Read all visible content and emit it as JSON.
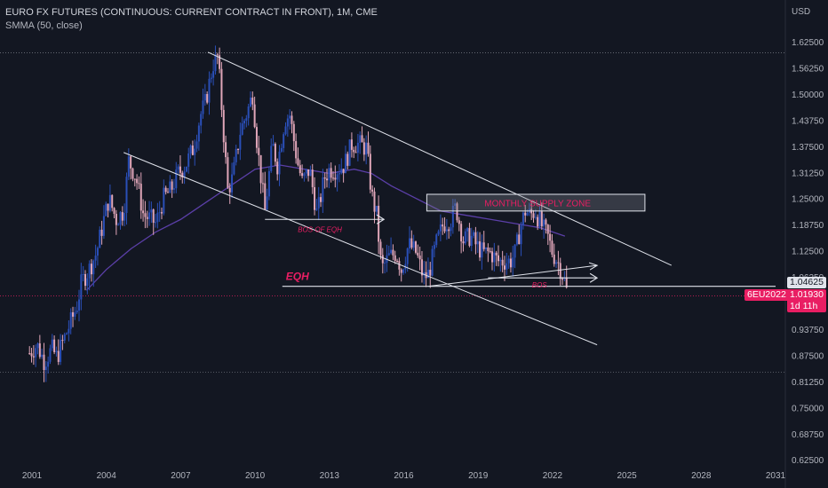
{
  "legend": {
    "title": "EURO FX FUTURES (CONTINUOUS: CURRENT CONTRACT IN FRONT), 1M, CME",
    "indicator": "SMMA (50, close)"
  },
  "axis": {
    "currency": "USD",
    "y_ticks": [
      "1.62500",
      "1.56250",
      "1.50000",
      "1.43750",
      "1.37500",
      "1.31250",
      "1.25000",
      "1.18750",
      "1.12500",
      "1.06250",
      "1.00000",
      "0.93750",
      "0.87500",
      "0.81250",
      "0.75000",
      "0.68750",
      "0.62500"
    ],
    "x_ticks": [
      "2001",
      "2004",
      "2007",
      "2010",
      "2013",
      "2016",
      "2019",
      "2022",
      "2025",
      "2028",
      "2031"
    ]
  },
  "price_labels": {
    "level_value": "1.04625",
    "symbol": "6EU2022",
    "last_price": "1.01930",
    "countdown": "1d 11h"
  },
  "annotations": {
    "supply_zone": "MONTHLY SUPPLY ZONE",
    "bos_eqh": "BOS OF EQH",
    "eqh": "EQH",
    "bos": "BOS"
  },
  "colors": {
    "background": "#131722",
    "bull": "#2a4fb8",
    "bear": "#e0a6b9",
    "smma": "#5b3fa8",
    "annotation": "#e91e63",
    "lines": "#e0e3eb",
    "label_pink": "#e91e63"
  },
  "chart_data": {
    "type": "candlestick",
    "title": "EURO FX FUTURES (CONTINUOUS: CURRENT CONTRACT IN FRONT), 1M, CME",
    "ylabel": "USD",
    "ylim": [
      0.625,
      1.65
    ],
    "xlim": [
      2000.5,
      2031
    ],
    "close_path": [
      [
        2000.9,
        0.88
      ],
      [
        2001.2,
        0.9
      ],
      [
        2001.5,
        0.86
      ],
      [
        2001.8,
        0.89
      ],
      [
        2002.0,
        0.87
      ],
      [
        2002.4,
        0.93
      ],
      [
        2002.8,
        0.99
      ],
      [
        2003.0,
        1.05
      ],
      [
        2003.3,
        1.08
      ],
      [
        2003.6,
        1.12
      ],
      [
        2003.9,
        1.2
      ],
      [
        2004.1,
        1.25
      ],
      [
        2004.4,
        1.2
      ],
      [
        2004.7,
        1.22
      ],
      [
        2004.9,
        1.34
      ],
      [
        2005.2,
        1.3
      ],
      [
        2005.5,
        1.21
      ],
      [
        2005.8,
        1.2
      ],
      [
        2006.0,
        1.19
      ],
      [
        2006.3,
        1.25
      ],
      [
        2006.6,
        1.27
      ],
      [
        2006.9,
        1.31
      ],
      [
        2007.2,
        1.33
      ],
      [
        2007.5,
        1.37
      ],
      [
        2007.8,
        1.45
      ],
      [
        2008.0,
        1.48
      ],
      [
        2008.3,
        1.57
      ],
      [
        2008.5,
        1.59
      ],
      [
        2008.7,
        1.43
      ],
      [
        2008.9,
        1.27
      ],
      [
        2009.1,
        1.3
      ],
      [
        2009.4,
        1.41
      ],
      [
        2009.7,
        1.46
      ],
      [
        2009.9,
        1.5
      ],
      [
        2010.1,
        1.37
      ],
      [
        2010.4,
        1.22
      ],
      [
        2010.7,
        1.38
      ],
      [
        2010.9,
        1.33
      ],
      [
        2011.2,
        1.44
      ],
      [
        2011.4,
        1.45
      ],
      [
        2011.7,
        1.34
      ],
      [
        2011.9,
        1.29
      ],
      [
        2012.2,
        1.32
      ],
      [
        2012.5,
        1.21
      ],
      [
        2012.8,
        1.3
      ],
      [
        2013.0,
        1.32
      ],
      [
        2013.3,
        1.32
      ],
      [
        2013.6,
        1.33
      ],
      [
        2013.9,
        1.38
      ],
      [
        2014.2,
        1.38
      ],
      [
        2014.5,
        1.37
      ],
      [
        2014.7,
        1.26
      ],
      [
        2014.9,
        1.21
      ],
      [
        2015.1,
        1.08
      ],
      [
        2015.4,
        1.11
      ],
      [
        2015.7,
        1.12
      ],
      [
        2015.9,
        1.08
      ],
      [
        2016.2,
        1.14
      ],
      [
        2016.5,
        1.12
      ],
      [
        2016.8,
        1.06
      ],
      [
        2017.0,
        1.07
      ],
      [
        2017.3,
        1.14
      ],
      [
        2017.6,
        1.19
      ],
      [
        2017.9,
        1.2
      ],
      [
        2018.1,
        1.23
      ],
      [
        2018.4,
        1.15
      ],
      [
        2018.7,
        1.16
      ],
      [
        2018.9,
        1.14
      ],
      [
        2019.2,
        1.12
      ],
      [
        2019.5,
        1.12
      ],
      [
        2019.8,
        1.1
      ],
      [
        2020.1,
        1.1
      ],
      [
        2020.3,
        1.1
      ],
      [
        2020.5,
        1.12
      ],
      [
        2020.7,
        1.18
      ],
      [
        2020.9,
        1.22
      ],
      [
        2021.1,
        1.21
      ],
      [
        2021.3,
        1.22
      ],
      [
        2021.6,
        1.18
      ],
      [
        2021.8,
        1.16
      ],
      [
        2022.0,
        1.12
      ],
      [
        2022.2,
        1.1
      ],
      [
        2022.4,
        1.07
      ],
      [
        2022.5,
        1.05
      ],
      [
        2022.6,
        1.02
      ]
    ],
    "smma_50": [
      [
        2003.2,
        1.03
      ],
      [
        2004.0,
        1.08
      ],
      [
        2005.0,
        1.13
      ],
      [
        2006.0,
        1.17
      ],
      [
        2007.0,
        1.2
      ],
      [
        2008.0,
        1.24
      ],
      [
        2009.0,
        1.28
      ],
      [
        2010.0,
        1.32
      ],
      [
        2011.0,
        1.33
      ],
      [
        2012.0,
        1.32
      ],
      [
        2013.0,
        1.31
      ],
      [
        2014.0,
        1.32
      ],
      [
        2014.7,
        1.31
      ],
      [
        2015.5,
        1.28
      ],
      [
        2016.5,
        1.25
      ],
      [
        2017.5,
        1.22
      ],
      [
        2018.5,
        1.21
      ],
      [
        2019.5,
        1.2
      ],
      [
        2020.5,
        1.19
      ],
      [
        2021.5,
        1.18
      ],
      [
        2022.5,
        1.16
      ]
    ],
    "trendlines": [
      {
        "from": [
          2008.1,
          1.6
        ],
        "to": [
          2026.8,
          1.09
        ]
      },
      {
        "from": [
          2004.7,
          1.36
        ],
        "to": [
          2023.8,
          0.9
        ]
      },
      {
        "from": [
          2017.0,
          1.04
        ],
        "to": [
          2023.8,
          1.09
        ]
      }
    ],
    "horizontal_levels": [
      {
        "from": [
          2010.4,
          1.2
        ],
        "to": [
          2015.2,
          1.2
        ],
        "label": "BOS OF EQH"
      },
      {
        "from": [
          2011.1,
          1.04
        ],
        "to": [
          2031,
          1.04
        ],
        "label": "EQH"
      },
      {
        "from": [
          2019.4,
          1.06
        ],
        "to": [
          2023.8,
          1.06
        ],
        "label": "BOS"
      }
    ],
    "supply_zone": {
      "x": [
        2017.0,
        2025.8
      ],
      "y": [
        1.22,
        1.26
      ],
      "label": "MONTHLY SUPPLY ZONE"
    },
    "dotted_levels": [
      1.598,
      0.835
    ],
    "last_price": 1.0193
  }
}
